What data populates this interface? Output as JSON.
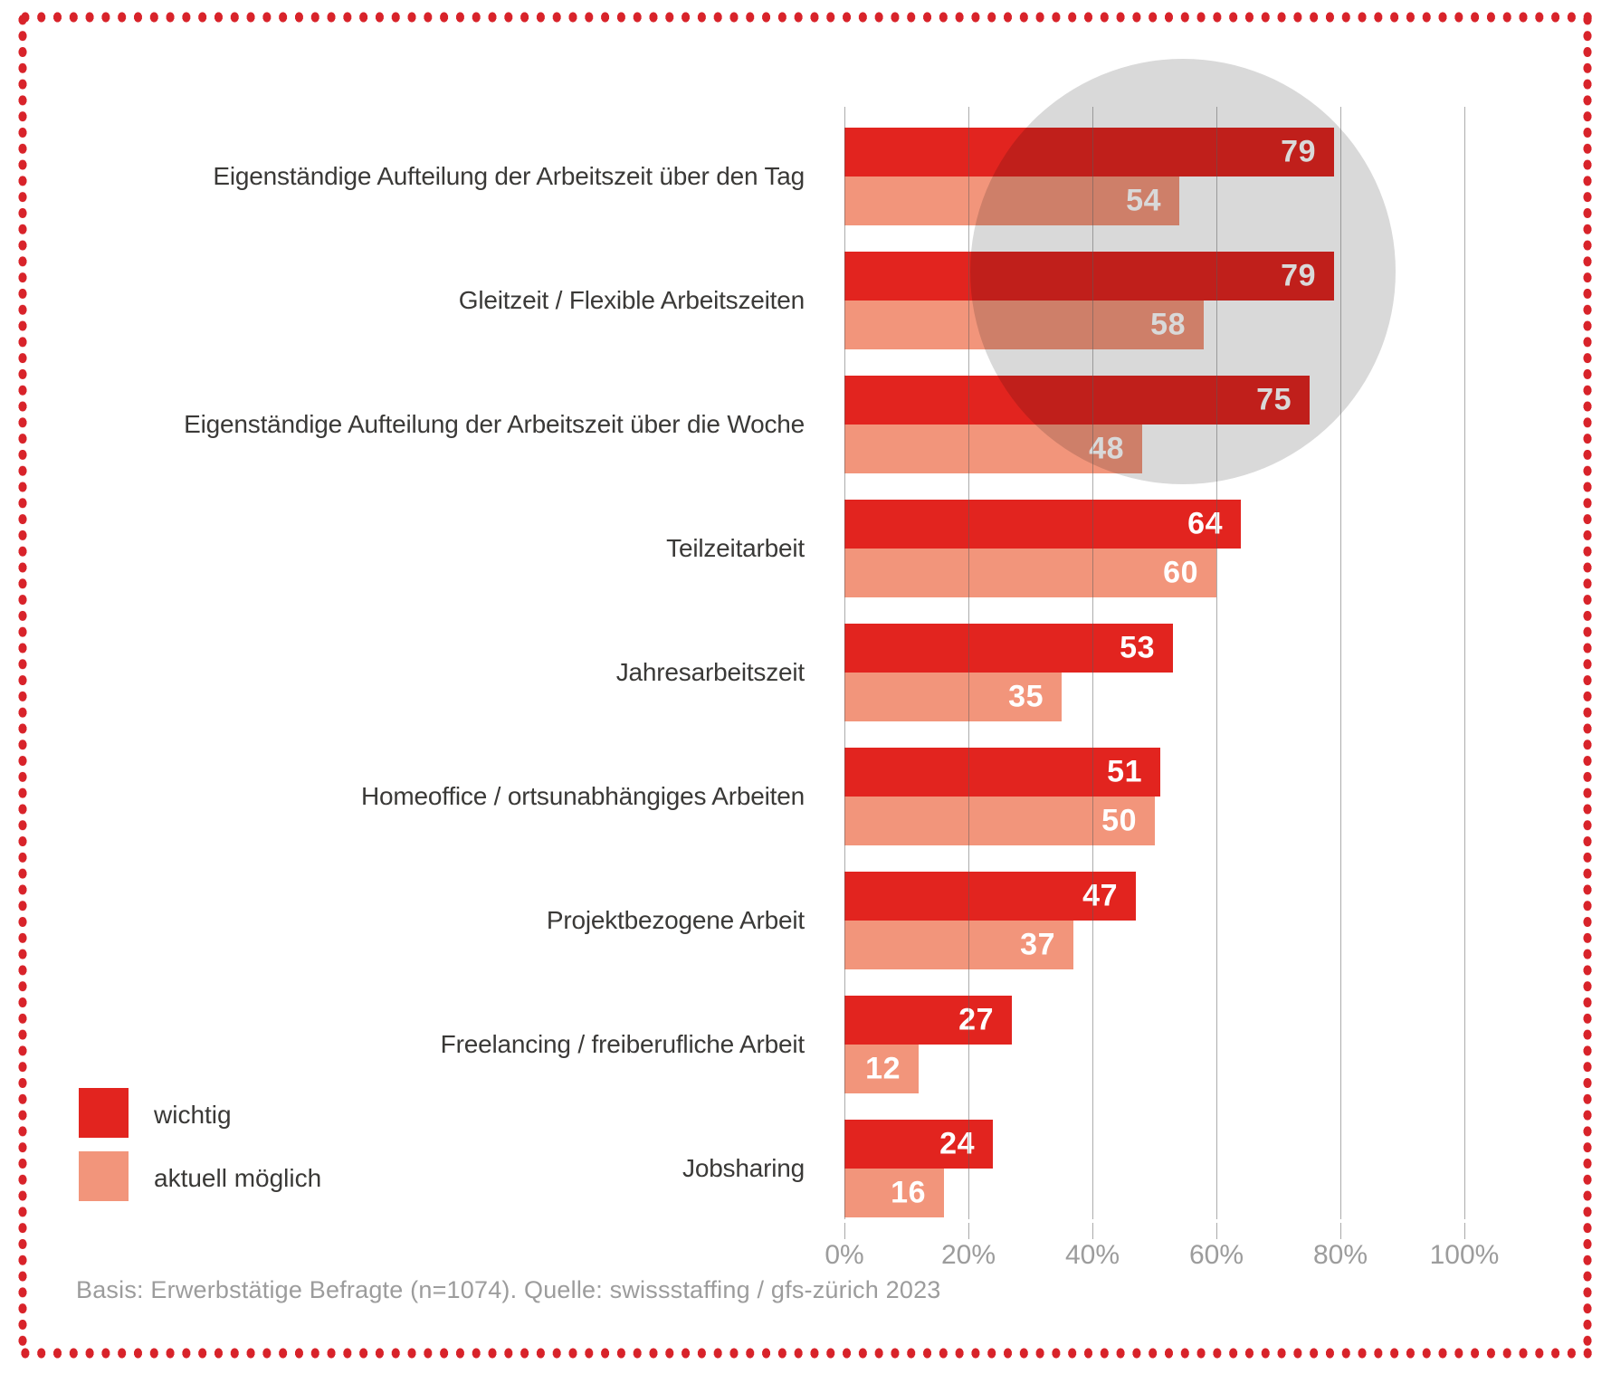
{
  "chart_data": {
    "type": "bar",
    "orientation": "horizontal",
    "title": "",
    "categories": [
      "Eigenständige Aufteilung der Arbeitszeit über den Tag",
      "Gleitzeit / Flexible Arbeitszeiten",
      "Eigenständige Aufteilung der Arbeitszeit über die Woche",
      "Teilzeitarbeit",
      "Jahresarbeitszeit",
      "Homeoffice / ortsunabhängiges Arbeiten",
      "Projektbezogene Arbeit",
      "Freelancing / freiberufliche Arbeit",
      "Jobsharing"
    ],
    "series": [
      {
        "name": "wichtig",
        "color": "#e2241f",
        "values": [
          79,
          79,
          75,
          64,
          53,
          51,
          47,
          27,
          24
        ]
      },
      {
        "name": "aktuell möglich",
        "color": "#f2957b",
        "values": [
          54,
          58,
          48,
          60,
          35,
          50,
          37,
          12,
          16
        ]
      }
    ],
    "xlabel": "",
    "ylabel": "",
    "x_axis": {
      "ticks": [
        "0%",
        "20%",
        "40%",
        "60%",
        "80%",
        "100%"
      ],
      "range": [
        0,
        100
      ]
    },
    "grid": true,
    "legend_position": "bottom-left",
    "value_labels": "inside-end, white"
  },
  "legend": {
    "items": [
      {
        "label": "wichtig",
        "color": "#e2241f"
      },
      {
        "label": "aktuell möglich",
        "color": "#f2957b"
      }
    ]
  },
  "footer": {
    "source_note": "Basis: Erwerbstätige Befragte (n=1074). Quelle: swissstaffing / gfs-zürich 2023"
  },
  "decorations": {
    "background_circle_color": "#d9d9d9",
    "border_dot_color": "#d8232a"
  }
}
